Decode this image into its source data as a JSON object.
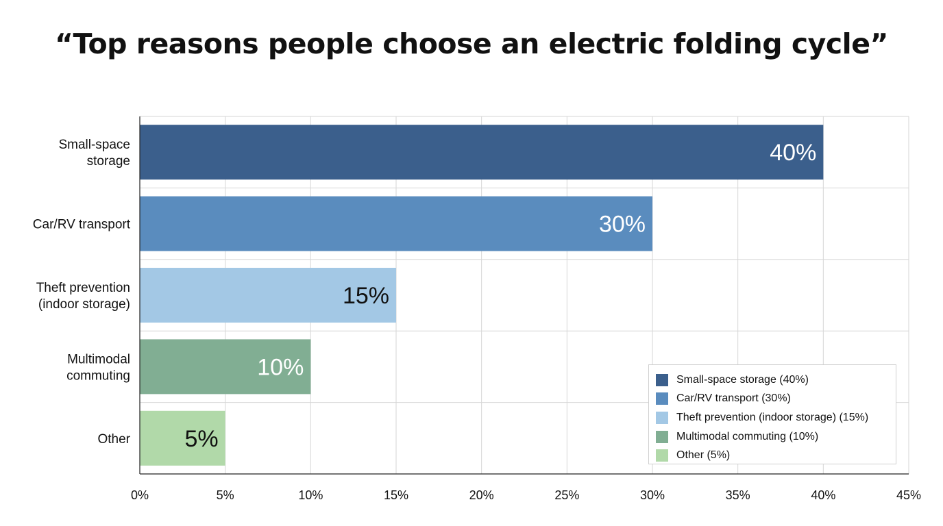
{
  "chart_data": {
    "type": "bar",
    "orientation": "horizontal",
    "title": "“Top reasons people choose an electric folding cycle”",
    "categories": [
      [
        "Small-space",
        "storage"
      ],
      [
        "Car/RV transport"
      ],
      [
        "Theft prevention",
        "(indoor storage)"
      ],
      [
        "Multimodal",
        "commuting"
      ],
      [
        "Other"
      ]
    ],
    "values": [
      40,
      30,
      15,
      10,
      5
    ],
    "data_labels": [
      "40%",
      "30%",
      "15%",
      "10%",
      "5%"
    ],
    "colors": [
      "#3b5f8c",
      "#5a8cbe",
      "#a3c8e5",
      "#81ae93",
      "#b1d9a9"
    ],
    "data_label_colors": [
      "#ffffff",
      "#ffffff",
      "#111111",
      "#ffffff",
      "#111111"
    ],
    "xlim": [
      0,
      45
    ],
    "xticks": [
      0,
      5,
      10,
      15,
      20,
      25,
      30,
      35,
      40,
      45
    ],
    "xtick_labels": [
      "0%",
      "5%",
      "10%",
      "15%",
      "20%",
      "25%",
      "30%",
      "35%",
      "40%",
      "45%"
    ],
    "xlabel": "",
    "ylabel": "",
    "grid": true,
    "legend_position": "bottom-right",
    "legend": [
      "Small-space storage (40%)",
      "Car/RV transport (30%)",
      "Theft prevention (indoor storage) (15%)",
      "Multimodal commuting (10%)",
      "Other (5%)"
    ]
  }
}
